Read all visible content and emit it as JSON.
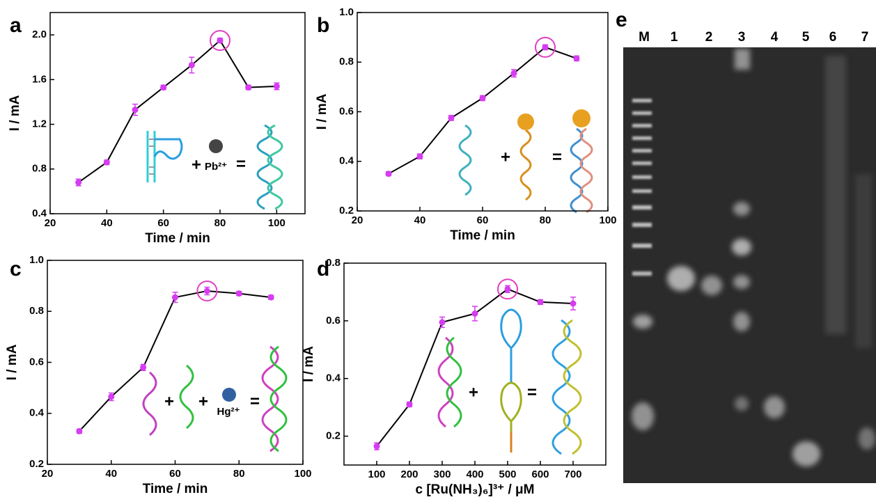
{
  "chart_data": [
    {
      "type": "line",
      "label": "a",
      "xlabel": "Time / min",
      "ylabel": "I / mA",
      "x": [
        30,
        40,
        50,
        60,
        70,
        80,
        90,
        100
      ],
      "values": [
        0.68,
        0.86,
        1.33,
        1.53,
        1.73,
        1.95,
        1.53,
        1.54
      ],
      "errors": [
        0.03,
        0.02,
        0.05,
        0.02,
        0.07,
        0.02,
        0.02,
        0.03
      ],
      "color": "#000000",
      "marker_color": "#d63cf0",
      "highlight_color": "#e040c0",
      "xlim": [
        20,
        110
      ],
      "xticks": [
        20,
        40,
        60,
        80,
        100
      ],
      "ylim": [
        0.4,
        2.2
      ],
      "yticks": [
        0.4,
        0.8,
        1.2,
        1.6,
        {
          "value": 2,
          "label": "2.0"
        }
      ],
      "annotations": [
        "+",
        "=",
        "Pb²⁺"
      ]
    },
    {
      "type": "line",
      "label": "b",
      "xlabel": "Time / min",
      "ylabel": "I / mA",
      "x": [
        30,
        40,
        50,
        60,
        70,
        80,
        90
      ],
      "values": [
        0.35,
        0.42,
        0.575,
        0.655,
        0.755,
        0.86,
        0.815
      ],
      "errors": [
        0.008,
        0.01,
        0.01,
        0.01,
        0.015,
        0.01,
        0.01
      ],
      "color": "#000000",
      "marker_color": "#d63cf0",
      "highlight_color": "#e040c0",
      "xlim": [
        20,
        100
      ],
      "xticks": [
        20,
        40,
        60,
        80,
        100
      ],
      "ylim": [
        0.2,
        1.0
      ],
      "yticks": [
        0.2,
        0.4,
        0.6,
        0.8,
        {
          "value": 1,
          "label": "1.0"
        }
      ],
      "annotations": [
        "+",
        "="
      ]
    },
    {
      "type": "line",
      "label": "c",
      "xlabel": "Time / min",
      "ylabel": "I / mA",
      "x": [
        30,
        40,
        50,
        60,
        70,
        80,
        90
      ],
      "values": [
        0.33,
        0.465,
        0.58,
        0.855,
        0.88,
        0.87,
        0.855
      ],
      "errors": [
        0.008,
        0.015,
        0.012,
        0.02,
        0.015,
        0.008,
        0.008
      ],
      "color": "#000000",
      "marker_color": "#d63cf0",
      "highlight_color": "#e040c0",
      "xlim": [
        20,
        100
      ],
      "xticks": [
        20,
        40,
        60,
        80,
        100
      ],
      "ylim": [
        0.2,
        1.0
      ],
      "yticks": [
        0.2,
        0.4,
        0.6,
        0.8,
        {
          "value": 1,
          "label": "1.0"
        }
      ],
      "annotations": [
        "+",
        "+",
        "Hg²⁺",
        "="
      ]
    },
    {
      "type": "line",
      "label": "d",
      "xlabel": "c [Ru(NH₃)₆]³⁺ / μM",
      "ylabel": "I / mA",
      "x": [
        100,
        200,
        300,
        400,
        500,
        600,
        700
      ],
      "values": [
        0.165,
        0.31,
        0.595,
        0.625,
        0.71,
        0.665,
        0.66
      ],
      "errors": [
        0.012,
        0.008,
        0.018,
        0.025,
        0.012,
        0.008,
        0.022
      ],
      "color": "#000000",
      "marker_color": "#d63cf0",
      "highlight_color": "#e040c0",
      "xlim": [
        0,
        800
      ],
      "xticks": [
        100,
        200,
        300,
        400,
        500,
        600,
        700
      ],
      "ylim": [
        0.1,
        0.8
      ],
      "yticks": [
        0.2,
        0.4,
        0.6,
        0.8
      ],
      "annotations": [
        "+",
        "="
      ]
    }
  ],
  "gel": {
    "label": "e",
    "lanes": [
      "M",
      "1",
      "2",
      "3",
      "4",
      "5",
      "6",
      "7"
    ]
  }
}
